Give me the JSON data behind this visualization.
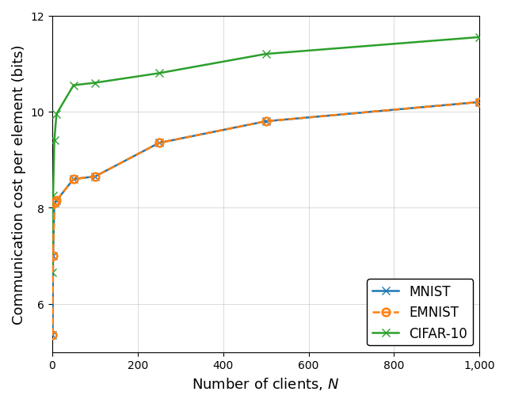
{
  "mnist_x": [
    1,
    2,
    5,
    10,
    50,
    100,
    250,
    500,
    1000
  ],
  "mnist_y": [
    5.35,
    7.0,
    8.1,
    8.15,
    8.6,
    8.65,
    9.35,
    9.8,
    10.2
  ],
  "emnist_x": [
    1,
    2,
    5,
    10,
    50,
    100,
    250,
    500,
    1000
  ],
  "emnist_y": [
    5.35,
    7.0,
    8.1,
    8.15,
    8.6,
    8.65,
    9.35,
    9.8,
    10.2
  ],
  "cifar_x": [
    1,
    2,
    5,
    10,
    50,
    100,
    250,
    500,
    1000
  ],
  "cifar_y": [
    6.65,
    8.25,
    9.4,
    9.95,
    10.55,
    10.6,
    10.8,
    11.2,
    11.55
  ],
  "mnist_color": "#1f77b4",
  "emnist_color": "#ff7f0e",
  "cifar_color": "#2ca02c",
  "title": "",
  "xlabel": "Number of clients, $N$",
  "ylabel": "Communication cost per element (bits)",
  "xlim": [
    0,
    1000
  ],
  "ylim": [
    5.0,
    12.0
  ],
  "legend_labels": [
    "MNIST",
    "EMNIST",
    "CIFAR-10"
  ],
  "xticks": [
    0,
    200,
    400,
    600,
    800,
    1000
  ],
  "yticks": [
    6,
    8,
    10,
    12
  ]
}
